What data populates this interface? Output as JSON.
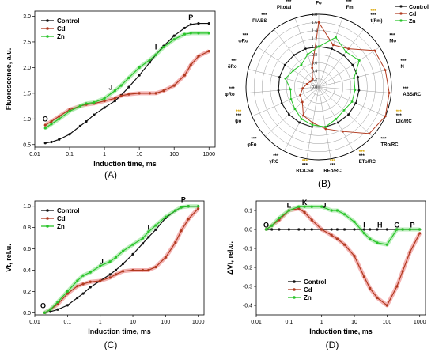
{
  "figure_labels": [
    "(A)",
    "(B)",
    "(C)",
    "(D)"
  ],
  "series_names": [
    "Control",
    "Cd",
    "Zn"
  ],
  "colors": {
    "Control": "#111111",
    "Cd": "#b13a1f",
    "Zn": "#29c42a",
    "Cd_band": "#f0a0a0",
    "Zn_band": "#a9eaa9"
  },
  "chart_data": [
    {
      "id": "A",
      "type": "line",
      "xscale": "log",
      "xlabel": "Induction time, ms",
      "ylabel": "Fluorescence, a.u.",
      "xlim": [
        0.01,
        1500
      ],
      "ylim": [
        0.45,
        3.1
      ],
      "xticks": [
        0.01,
        0.1,
        1,
        10,
        100,
        1000
      ],
      "xtick_labels": [
        "0.01",
        "0.1",
        "1",
        "10",
        "100",
        "1000"
      ],
      "yticks": [
        0.5,
        1.0,
        1.5,
        2.0,
        2.5,
        3.0
      ],
      "ytick_labels": [
        "0.5",
        "1.0",
        "1.5",
        "2.0",
        "2.5",
        "3.0"
      ],
      "legend": "top-left",
      "annotations": [
        {
          "text": "O",
          "x": 0.02,
          "y": 0.95
        },
        {
          "text": "J",
          "x": 1.5,
          "y": 1.57
        },
        {
          "text": "I",
          "x": 30,
          "y": 2.35
        },
        {
          "text": "P",
          "x": 300,
          "y": 2.93
        }
      ],
      "x": [
        0.02,
        0.03,
        0.05,
        0.1,
        0.2,
        0.3,
        0.5,
        1,
        2,
        3,
        5,
        10,
        20,
        30,
        50,
        100,
        200,
        300,
        500,
        1000
      ],
      "series": [
        {
          "name": "Control",
          "values": [
            0.53,
            0.55,
            0.6,
            0.7,
            0.86,
            0.95,
            1.08,
            1.22,
            1.35,
            1.46,
            1.62,
            1.85,
            2.1,
            2.25,
            2.42,
            2.62,
            2.77,
            2.84,
            2.86,
            2.86
          ]
        },
        {
          "name": "Cd",
          "values": [
            0.88,
            0.95,
            1.05,
            1.18,
            1.25,
            1.28,
            1.3,
            1.35,
            1.4,
            1.45,
            1.48,
            1.5,
            1.5,
            1.5,
            1.55,
            1.65,
            1.85,
            2.05,
            2.22,
            2.32
          ]
        },
        {
          "name": "Zn",
          "values": [
            0.82,
            0.9,
            1.0,
            1.15,
            1.25,
            1.3,
            1.32,
            1.4,
            1.55,
            1.65,
            1.8,
            2.0,
            2.15,
            2.25,
            2.4,
            2.55,
            2.65,
            2.67,
            2.67,
            2.67
          ]
        }
      ]
    },
    {
      "id": "B",
      "type": "radar",
      "rlim": [
        0,
        1.8
      ],
      "rticks": [
        0.0,
        0.2,
        0.4,
        0.6,
        0.8,
        1.0,
        1.2,
        1.4,
        1.6,
        1.8
      ],
      "legend": "top-right",
      "axes": [
        {
          "label": "Fo",
          "ctrl_sig": "***",
          "zn_sig": ""
        },
        {
          "label": "Fm",
          "ctrl_sig": "***",
          "zn_sig": ""
        },
        {
          "label": "t(Fm)",
          "ctrl_sig": "***",
          "zn_sig": "***"
        },
        {
          "label": "Mo",
          "ctrl_sig": "***",
          "zn_sig": ""
        },
        {
          "label": "N",
          "ctrl_sig": "***",
          "zn_sig": ""
        },
        {
          "label": "ABS/RC",
          "ctrl_sig": "***",
          "zn_sig": ""
        },
        {
          "label": "DIo/RC",
          "ctrl_sig": "***",
          "zn_sig": "***"
        },
        {
          "label": "TRo/RC",
          "ctrl_sig": "***",
          "zn_sig": ""
        },
        {
          "label": "ETo/RC",
          "ctrl_sig": "***",
          "zn_sig": "***"
        },
        {
          "label": "REo/RC",
          "ctrl_sig": "***",
          "zn_sig": "***"
        },
        {
          "label": "RC/CSo",
          "ctrl_sig": "***",
          "zn_sig": "***"
        },
        {
          "label": "γRC",
          "ctrl_sig": "***",
          "zn_sig": ""
        },
        {
          "label": "φEo",
          "ctrl_sig": "***",
          "zn_sig": ""
        },
        {
          "label": "ψo",
          "ctrl_sig": "***",
          "zn_sig": "***"
        },
        {
          "label": "φRo",
          "ctrl_sig": "***",
          "zn_sig": ""
        },
        {
          "label": "δRo",
          "ctrl_sig": "***",
          "zn_sig": ""
        },
        {
          "label": "φRo",
          "ctrl_sig": "***",
          "zn_sig": ""
        },
        {
          "label": "PIABS",
          "ctrl_sig": "***",
          "zn_sig": ""
        },
        {
          "label": "PItotal",
          "ctrl_sig": "***",
          "zn_sig": ""
        }
      ],
      "series": [
        {
          "name": "Control",
          "values": [
            1.0,
            1.0,
            1.0,
            1.0,
            1.0,
            1.0,
            1.0,
            1.0,
            1.0,
            1.0,
            1.0,
            1.0,
            1.0,
            1.0,
            1.0,
            1.0,
            1.0,
            1.0,
            1.0
          ]
        },
        {
          "name": "Cd",
          "values": [
            1.6,
            1.1,
            1.2,
            1.65,
            1.7,
            1.75,
            1.8,
            1.7,
            1.25,
            1.05,
            0.9,
            0.8,
            0.55,
            0.5,
            0.4,
            0.3,
            0.25,
            0.25,
            0.5
          ]
        },
        {
          "name": "Zn",
          "values": [
            1.0,
            1.3,
            1.1,
            1.2,
            0.9,
            0.9,
            0.9,
            0.85,
            0.9,
            1.0,
            0.95,
            0.9,
            0.8,
            0.75,
            0.7,
            0.85,
            0.75,
            0.7,
            0.85
          ]
        }
      ]
    },
    {
      "id": "C",
      "type": "line",
      "xscale": "log",
      "xlabel": "Induction time, ms",
      "ylabel": "Vt, rel.u.",
      "xlim": [
        0.01,
        1500
      ],
      "ylim": [
        -0.02,
        1.05
      ],
      "xticks": [
        0.01,
        0.1,
        1,
        10,
        100,
        1000
      ],
      "xtick_labels": [
        "0.01",
        "0.1",
        "1",
        "10",
        "100",
        "1000"
      ],
      "yticks": [
        0.0,
        0.2,
        0.4,
        0.6,
        0.8,
        1.0
      ],
      "ytick_labels": [
        "0.0",
        "0.2",
        "0.4",
        "0.6",
        "0.8",
        "1.0"
      ],
      "legend": "top-left",
      "annotations": [
        {
          "text": "O",
          "x": 0.018,
          "y": 0.045
        },
        {
          "text": "J",
          "x": 1.1,
          "y": 0.46
        },
        {
          "text": "I",
          "x": 30,
          "y": 0.78
        },
        {
          "text": "P",
          "x": 350,
          "y": 1.04
        }
      ],
      "x": [
        0.02,
        0.03,
        0.05,
        0.1,
        0.2,
        0.3,
        0.5,
        1,
        2,
        3,
        5,
        10,
        20,
        30,
        50,
        100,
        200,
        300,
        500,
        1000
      ],
      "series": [
        {
          "name": "Control",
          "values": [
            0.0,
            0.01,
            0.03,
            0.07,
            0.14,
            0.18,
            0.24,
            0.3,
            0.36,
            0.4,
            0.46,
            0.55,
            0.65,
            0.71,
            0.78,
            0.89,
            0.96,
            0.99,
            1.0,
            1.0
          ]
        },
        {
          "name": "Cd",
          "values": [
            0.0,
            0.03,
            0.08,
            0.18,
            0.25,
            0.27,
            0.29,
            0.3,
            0.33,
            0.36,
            0.39,
            0.4,
            0.4,
            0.4,
            0.43,
            0.52,
            0.66,
            0.77,
            0.88,
            0.98
          ]
        },
        {
          "name": "Zn",
          "values": [
            0.0,
            0.03,
            0.1,
            0.2,
            0.3,
            0.35,
            0.38,
            0.44,
            0.48,
            0.52,
            0.58,
            0.64,
            0.7,
            0.76,
            0.82,
            0.9,
            0.96,
            0.99,
            1.0,
            1.0
          ]
        }
      ]
    },
    {
      "id": "D",
      "type": "line",
      "xscale": "log",
      "xlabel": "Induction time, ms",
      "ylabel": "ΔVt, rel.u.",
      "xlim": [
        0.01,
        1500
      ],
      "ylim": [
        -0.45,
        0.15
      ],
      "xticks": [
        0.01,
        0.1,
        1,
        10,
        100,
        1000
      ],
      "xtick_labels": [
        "0.01",
        "0.1",
        "1",
        "10",
        "100",
        "1000"
      ],
      "yticks": [
        0.1,
        0.0,
        -0.1,
        -0.2,
        -0.3,
        -0.4
      ],
      "ytick_labels": [
        "0.1",
        "0.0",
        "-0.1",
        "-0.2",
        "-0.3",
        "-0.4"
      ],
      "legend": "bottom-left",
      "annotations": [
        {
          "text": "O",
          "x": 0.02,
          "y": 0.01
        },
        {
          "text": "L",
          "x": 0.1,
          "y": 0.115
        },
        {
          "text": "K",
          "x": 0.3,
          "y": 0.13
        },
        {
          "text": "J",
          "x": 1.2,
          "y": 0.115
        },
        {
          "text": "I",
          "x": 20,
          "y": 0.01
        },
        {
          "text": "H",
          "x": 60,
          "y": 0.01
        },
        {
          "text": "G",
          "x": 200,
          "y": 0.01
        },
        {
          "text": "P",
          "x": 600,
          "y": 0.01
        }
      ],
      "x": [
        0.02,
        0.03,
        0.05,
        0.1,
        0.2,
        0.3,
        0.5,
        1,
        2,
        3,
        5,
        10,
        20,
        30,
        50,
        100,
        200,
        300,
        500,
        1000
      ],
      "series": [
        {
          "name": "Control",
          "values": [
            0,
            0,
            0,
            0,
            0,
            0,
            0,
            0,
            0,
            0,
            0,
            0,
            0,
            0,
            0,
            0,
            0,
            0,
            0,
            0
          ]
        },
        {
          "name": "Cd",
          "values": [
            0.0,
            0.02,
            0.05,
            0.1,
            0.11,
            0.09,
            0.05,
            0.0,
            -0.03,
            -0.05,
            -0.08,
            -0.14,
            -0.25,
            -0.31,
            -0.36,
            -0.4,
            -0.3,
            -0.22,
            -0.12,
            -0.02
          ]
        },
        {
          "name": "Zn",
          "values": [
            0.0,
            0.02,
            0.06,
            0.1,
            0.12,
            0.12,
            0.12,
            0.12,
            0.1,
            0.1,
            0.08,
            0.04,
            -0.02,
            -0.05,
            -0.07,
            -0.08,
            0.0,
            0.0,
            0.0,
            0.0
          ]
        }
      ]
    }
  ]
}
